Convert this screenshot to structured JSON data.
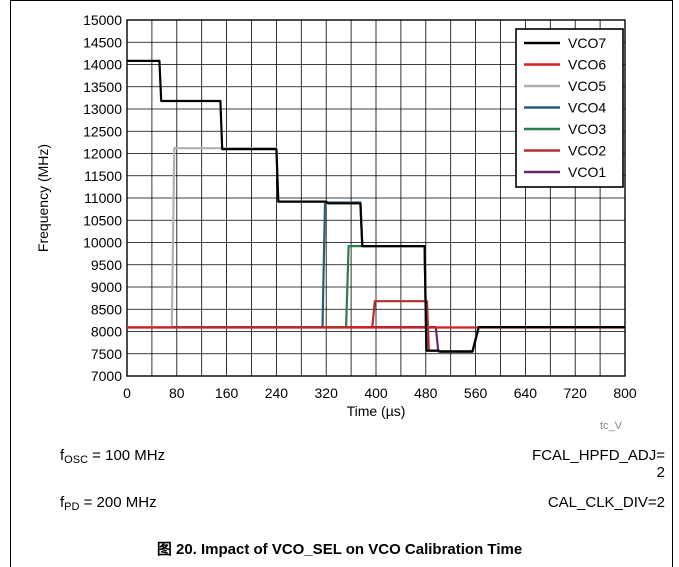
{
  "chart_data": {
    "type": "line",
    "xlabel": "Time (µs)",
    "ylabel": "Frequency (MHz)",
    "xlim": [
      0,
      800
    ],
    "ylim": [
      7000,
      15000
    ],
    "xticks": [
      0,
      80,
      160,
      240,
      320,
      400,
      480,
      560,
      640,
      720,
      800
    ],
    "yticks": [
      7000,
      7500,
      8000,
      8500,
      9000,
      9500,
      10000,
      10500,
      11000,
      11500,
      12000,
      12500,
      13000,
      13500,
      14000,
      14500,
      15000
    ],
    "xminor_step": 40,
    "grid": true,
    "legend_position": "top-right",
    "series": [
      {
        "name": "VCO7",
        "color": "#000000",
        "x": [
          0,
          52,
          55,
          150,
          153,
          240,
          243,
          320,
          323,
          375,
          378,
          478,
          481,
          500,
          503,
          555,
          565,
          800
        ],
        "y": [
          14080,
          14080,
          13180,
          13180,
          12100,
          12100,
          10920,
          10920,
          10880,
          10880,
          9920,
          9920,
          7570,
          7570,
          7550,
          7550,
          8100,
          8100
        ]
      },
      {
        "name": "VCO6",
        "color": "#d42020",
        "x": [
          0,
          400,
          800
        ],
        "y": [
          8090,
          8090,
          8090
        ]
      },
      {
        "name": "VCO5",
        "color": "#b0b0b0",
        "x": [
          0,
          72,
          76,
          240,
          243,
          320,
          323,
          375,
          378,
          478,
          481,
          500,
          503,
          555,
          565,
          800
        ],
        "y": [
          8100,
          8100,
          12120,
          12120,
          10920,
          10920,
          10880,
          10880,
          9920,
          9920,
          7570,
          7570,
          7550,
          7550,
          8100,
          8100
        ]
      },
      {
        "name": "VCO4",
        "color": "#2e5b78",
        "x": [
          0,
          314,
          318,
          375,
          378,
          478,
          481,
          500,
          503,
          555,
          565,
          800
        ],
        "y": [
          8100,
          8100,
          10900,
          10900,
          9920,
          9920,
          7570,
          7570,
          7550,
          7550,
          8100,
          8100
        ]
      },
      {
        "name": "VCO3",
        "color": "#2e7d4f",
        "x": [
          0,
          352,
          356,
          478,
          481,
          500,
          503,
          555,
          565,
          800
        ],
        "y": [
          8100,
          8100,
          9920,
          9920,
          7570,
          7570,
          7550,
          7550,
          8100,
          8100
        ]
      },
      {
        "name": "VCO2",
        "color": "#b03030",
        "x": [
          0,
          394,
          398,
          482,
          485,
          500,
          503,
          555,
          565,
          800
        ],
        "y": [
          8100,
          8100,
          8680,
          8680,
          7570,
          7570,
          7550,
          7550,
          8100,
          8100
        ]
      },
      {
        "name": "VCO1",
        "color": "#6a2a6a",
        "x": [
          0,
          496,
          500,
          555,
          565,
          800
        ],
        "y": [
          8100,
          8100,
          7550,
          7550,
          8100,
          8100
        ]
      }
    ]
  },
  "watermark": "tc_V",
  "notes": {
    "fosc_prefix": "f",
    "fosc_sub": "OSC",
    "fosc_value": " = 100 MHz",
    "fpd_prefix": "f",
    "fpd_sub": "PD",
    "fpd_value": " = 200 MHz",
    "hpfd_line1": "FCAL_HPFD_ADJ=",
    "hpfd_line2": "2",
    "cal_clk": "CAL_CLK_DIV=2"
  },
  "caption": "图 20. Impact of VCO_SEL on VCO Calibration Time"
}
